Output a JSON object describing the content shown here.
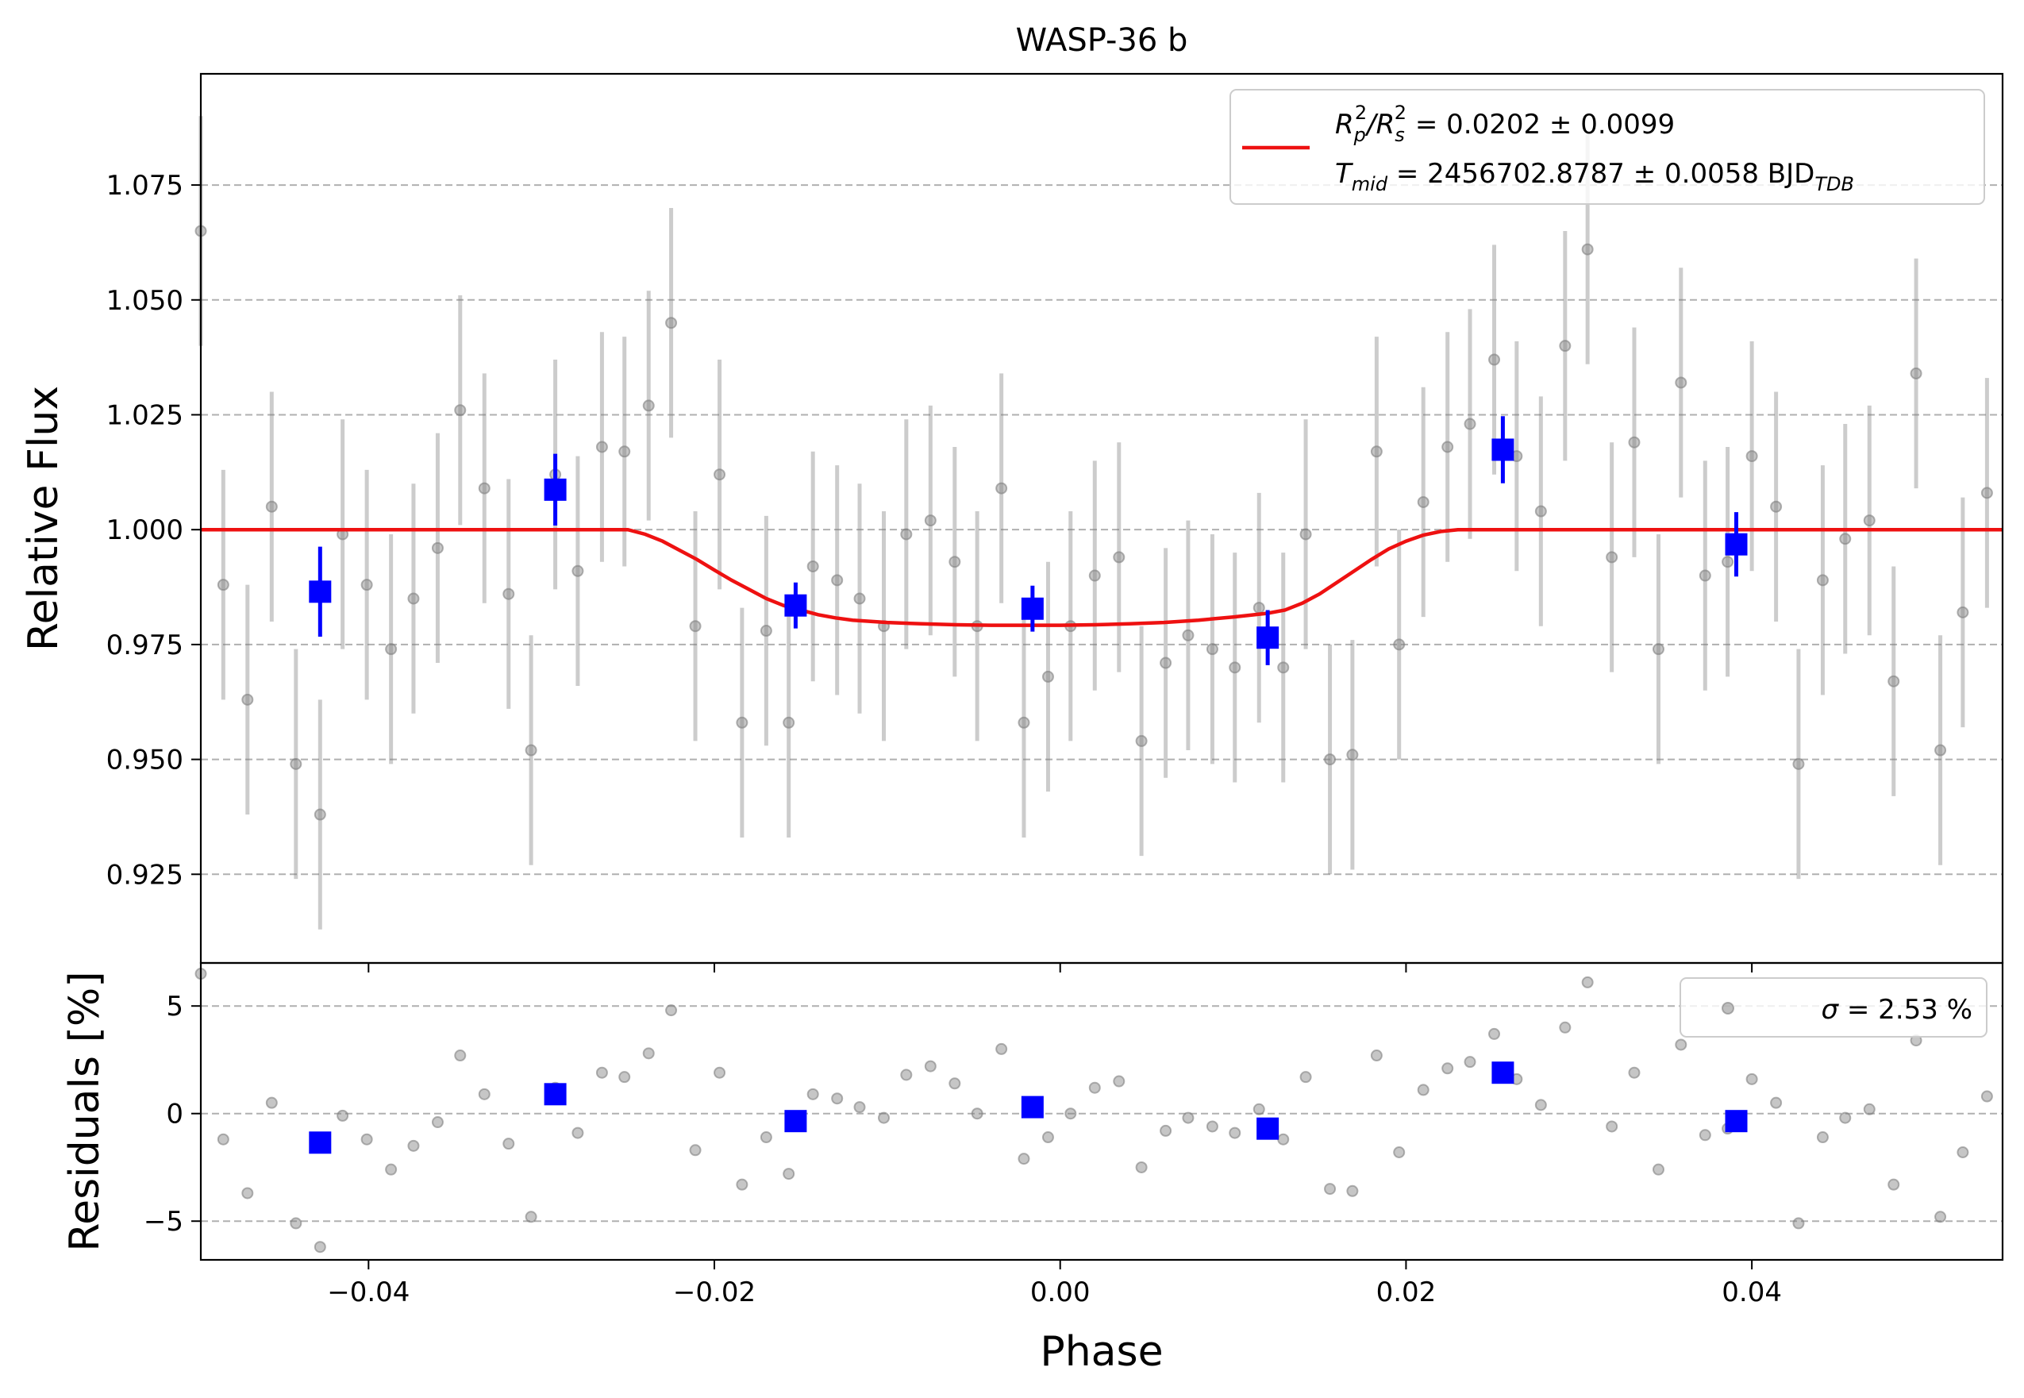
{
  "chart_data": [
    {
      "type": "scatter",
      "title": "WASP-36 b",
      "xlabel": "",
      "ylabel": "Relative Flux",
      "xlim": [
        -0.0497,
        0.0545
      ],
      "ylim": [
        0.9057,
        1.0992
      ],
      "xticks": [
        -0.04,
        -0.02,
        0.0,
        0.02,
        0.04
      ],
      "xtick_labels": [
        "",
        "",
        "",
        "",
        ""
      ],
      "yticks": [
        0.925,
        0.95,
        0.975,
        1.0,
        1.025,
        1.05,
        1.075
      ],
      "ytick_labels": [
        "0.925",
        "0.950",
        "0.975",
        "1.000",
        "1.025",
        "1.050",
        "1.075"
      ],
      "grid": "y-dashed",
      "legend": {
        "placement": "top-right",
        "line1": {
          "parts": [
            "R",
            "p",
            "2",
            "/R",
            "s",
            "2",
            " = 0.0202 ± 0.0099"
          ]
        },
        "line2": {
          "parts": [
            "T",
            "mid",
            " = 2456702.8787 ± 0.0058 BJD",
            "TDB"
          ]
        }
      },
      "series": [
        {
          "kind": "raw-data",
          "color": "#808080",
          "x": [
            -0.0497,
            -0.0484,
            -0.047,
            -0.0456,
            -0.0442,
            -0.0428,
            -0.0415,
            -0.0401,
            -0.0387,
            -0.0374,
            -0.036,
            -0.0347,
            -0.0333,
            -0.0319,
            -0.0306,
            -0.0292,
            -0.0279,
            -0.0265,
            -0.0252,
            -0.0238,
            -0.0225,
            -0.0211,
            -0.0197,
            -0.0184,
            -0.017,
            -0.0157,
            -0.0143,
            -0.0129,
            -0.0116,
            -0.0102,
            -0.0089,
            -0.0075,
            -0.0061,
            -0.0048,
            -0.0034,
            -0.0021,
            -0.0007,
            0.0006,
            0.002,
            0.0034,
            0.0047,
            0.0061,
            0.0074,
            0.0088,
            0.0101,
            0.0115,
            0.0129,
            0.0142,
            0.0156,
            0.0169,
            0.0183,
            0.0196,
            0.021,
            0.0224,
            0.0237,
            0.0251,
            0.0264,
            0.0278,
            0.0292,
            0.0305,
            0.0319,
            0.0332,
            0.0346,
            0.0359,
            0.0373,
            0.0386,
            0.04,
            0.0414,
            0.0427,
            0.0441,
            0.0454,
            0.0468,
            0.0482,
            0.0495,
            0.0509,
            0.0522,
            0.0536
          ],
          "y": [
            1.065,
            0.988,
            0.963,
            1.005,
            0.949,
            0.938,
            0.999,
            0.988,
            0.974,
            0.985,
            0.996,
            1.026,
            1.009,
            0.986,
            0.952,
            1.012,
            0.991,
            1.018,
            1.017,
            1.027,
            1.045,
            0.979,
            1.012,
            0.958,
            0.978,
            0.958,
            0.992,
            0.989,
            0.985,
            0.979,
            0.999,
            1.002,
            0.993,
            0.979,
            1.009,
            0.958,
            0.968,
            0.979,
            0.99,
            0.994,
            0.954,
            0.971,
            0.977,
            0.974,
            0.97,
            0.983,
            0.97,
            0.999,
            0.95,
            0.951,
            1.017,
            0.975,
            1.006,
            1.018,
            1.023,
            1.037,
            1.016,
            1.004,
            1.04,
            1.061,
            0.994,
            1.019,
            0.974,
            1.032,
            0.99,
            0.993,
            1.016,
            1.005,
            0.949,
            0.989,
            0.998,
            1.002,
            0.967,
            1.034,
            0.952,
            0.982,
            1.008
          ],
          "yerr": 0.025
        },
        {
          "kind": "binned-data",
          "color": "#0000ff",
          "x": [
            -0.0428,
            -0.0292,
            -0.0153,
            -0.0016,
            0.012,
            0.0256,
            0.0391
          ],
          "y": [
            0.9865,
            1.0087,
            0.9835,
            0.9828,
            0.9765,
            1.0174,
            0.9968
          ],
          "yerr": [
            0.0098,
            0.0078,
            0.005,
            0.005,
            0.006,
            0.0073,
            0.007
          ]
        },
        {
          "kind": "transit-model",
          "color": "#ee1111",
          "x": [
            -0.0497,
            -0.026,
            -0.025,
            -0.024,
            -0.023,
            -0.022,
            -0.021,
            -0.02,
            -0.019,
            -0.018,
            -0.017,
            -0.016,
            -0.015,
            -0.014,
            -0.013,
            -0.012,
            -0.01,
            -0.008,
            -0.006,
            -0.004,
            -0.002,
            0.0,
            0.002,
            0.004,
            0.006,
            0.008,
            0.01,
            0.012,
            0.013,
            0.014,
            0.015,
            0.016,
            0.017,
            0.018,
            0.019,
            0.02,
            0.021,
            0.022,
            0.023,
            0.024,
            0.025,
            0.0545
          ],
          "y": [
            1.0,
            1.0,
            1.0,
            0.999,
            0.9975,
            0.9955,
            0.9935,
            0.9912,
            0.989,
            0.987,
            0.985,
            0.9835,
            0.9825,
            0.9815,
            0.9808,
            0.9803,
            0.9798,
            0.9795,
            0.9793,
            0.9792,
            0.9792,
            0.9792,
            0.9793,
            0.9795,
            0.9798,
            0.9803,
            0.981,
            0.9818,
            0.9825,
            0.984,
            0.986,
            0.9885,
            0.991,
            0.9935,
            0.9958,
            0.9975,
            0.9988,
            0.9996,
            1.0,
            1.0,
            1.0,
            1.0
          ]
        }
      ]
    },
    {
      "type": "scatter",
      "title": "",
      "xlabel": "Phase",
      "ylabel": "Residuals [%]",
      "xlim": [
        -0.0497,
        0.0545
      ],
      "ylim": [
        -6.8,
        7.0
      ],
      "xticks": [
        -0.04,
        -0.02,
        0.0,
        0.02,
        0.04
      ],
      "xtick_labels": [
        "−0.04",
        "−0.02",
        "0.00",
        "0.02",
        "0.04"
      ],
      "yticks": [
        -5,
        0,
        5
      ],
      "ytick_labels": [
        "−5",
        "0",
        "5"
      ],
      "grid": "y-dashed",
      "legend": {
        "placement": "top-right",
        "sigma_symbol": "σ",
        "text": " = 2.53 %"
      },
      "series": [
        {
          "kind": "raw-residuals",
          "color": "#808080",
          "x": [
            -0.0497,
            -0.0484,
            -0.047,
            -0.0456,
            -0.0442,
            -0.0428,
            -0.0415,
            -0.0401,
            -0.0387,
            -0.0374,
            -0.036,
            -0.0347,
            -0.0333,
            -0.0319,
            -0.0306,
            -0.0292,
            -0.0279,
            -0.0265,
            -0.0252,
            -0.0238,
            -0.0225,
            -0.0211,
            -0.0197,
            -0.0184,
            -0.017,
            -0.0157,
            -0.0143,
            -0.0129,
            -0.0116,
            -0.0102,
            -0.0089,
            -0.0075,
            -0.0061,
            -0.0048,
            -0.0034,
            -0.0021,
            -0.0007,
            0.0006,
            0.002,
            0.0034,
            0.0047,
            0.0061,
            0.0074,
            0.0088,
            0.0101,
            0.0115,
            0.0129,
            0.0142,
            0.0156,
            0.0169,
            0.0183,
            0.0196,
            0.021,
            0.0224,
            0.0237,
            0.0251,
            0.0264,
            0.0278,
            0.0292,
            0.0305,
            0.0319,
            0.0332,
            0.0346,
            0.0359,
            0.0373,
            0.0386,
            0.04,
            0.0414,
            0.0427,
            0.0441,
            0.0454,
            0.0468,
            0.0482,
            0.0495,
            0.0509,
            0.0522,
            0.0536
          ],
          "y": [
            6.5,
            -1.2,
            -3.7,
            0.5,
            -5.1,
            -6.2,
            -0.1,
            -1.2,
            -2.6,
            -1.5,
            -0.4,
            2.7,
            0.9,
            -1.4,
            -4.8,
            1.2,
            -0.9,
            1.9,
            1.7,
            2.8,
            4.8,
            -1.7,
            1.9,
            -3.3,
            -1.1,
            -2.8,
            0.9,
            0.7,
            0.3,
            -0.2,
            1.8,
            2.2,
            1.4,
            0.0,
            3.0,
            -2.1,
            -1.1,
            0.0,
            1.2,
            1.5,
            -2.5,
            -0.8,
            -0.2,
            -0.6,
            -0.9,
            0.2,
            -1.2,
            1.7,
            -3.5,
            -3.6,
            2.7,
            -1.8,
            1.1,
            2.1,
            2.4,
            3.7,
            1.6,
            0.4,
            4.0,
            6.1,
            -0.6,
            1.9,
            -2.6,
            3.2,
            -1.0,
            -0.7,
            1.6,
            0.5,
            -5.1,
            -1.1,
            -0.2,
            0.2,
            -3.3,
            3.4,
            -4.8,
            -1.8,
            0.8
          ]
        },
        {
          "kind": "binned-residuals",
          "color": "#0000ff",
          "x": [
            -0.0428,
            -0.0292,
            -0.0153,
            -0.0016,
            0.012,
            0.0256,
            0.0391
          ],
          "y": [
            -1.35,
            0.9,
            -0.35,
            0.3,
            -0.7,
            1.9,
            -0.35
          ]
        }
      ]
    }
  ]
}
